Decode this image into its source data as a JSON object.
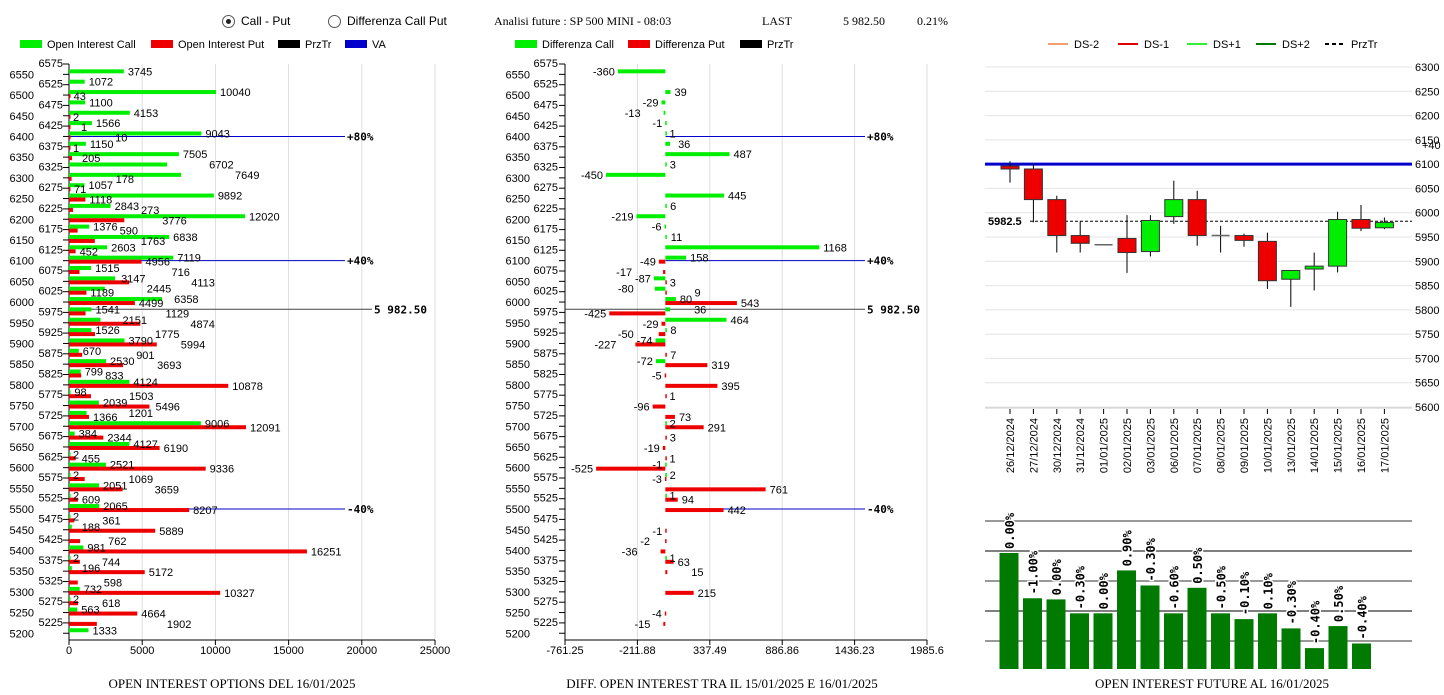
{
  "header": {
    "radio_options": [
      {
        "label": "Call - Put",
        "selected": true
      },
      {
        "label": "Differenza Call Put",
        "selected": false
      }
    ],
    "title": "Analisi future : SP 500 MINI - 08:03",
    "last_label": "LAST",
    "last_value": "5 982.50",
    "last_change": "0.21%"
  },
  "colors": {
    "call": "#00ee00",
    "put": "#ee0000",
    "prztr": "#000000",
    "va": "#0000cc",
    "candle_up": "#00ee00",
    "candle_down": "#ee0000",
    "oi_bar": "#007a00",
    "ds_minus2": "#f0a070",
    "ds_minus1": "#dd0000",
    "ds_plus1": "#33ee33",
    "ds_plus2": "#007a00"
  },
  "chart_data": [
    {
      "type": "bar",
      "orientation": "horizontal",
      "title": "OPEN INTEREST OPTIONS DEL 16/01/2025",
      "legend": [
        {
          "label": "Open Interest Call",
          "color": "#00ee00"
        },
        {
          "label": "Open Interest Put",
          "color": "#ee0000"
        },
        {
          "label": "PrzTr",
          "color": "#000000"
        },
        {
          "label": "VA",
          "color": "#0000cc"
        }
      ],
      "xlim": [
        0,
        25000
      ],
      "xticks": [
        "0",
        "5000",
        "10000",
        "15000",
        "20000",
        "25000"
      ],
      "yticks": [
        "6575",
        "6550",
        "6525",
        "6500",
        "6475",
        "6450",
        "6425",
        "6400",
        "6375",
        "6350",
        "6325",
        "6300",
        "6275",
        "6250",
        "6225",
        "6200",
        "6175",
        "6150",
        "6125",
        "6100",
        "6075",
        "6050",
        "6025",
        "6000",
        "5975",
        "5950",
        "5925",
        "5900",
        "5875",
        "5850",
        "5825",
        "5800",
        "5775",
        "5750",
        "5725",
        "5700",
        "5675",
        "5650",
        "5625",
        "5600",
        "5575",
        "5550",
        "5525",
        "5500",
        "5475",
        "5450",
        "5425",
        "5400",
        "5375",
        "5350",
        "5325",
        "5300",
        "5275",
        "5250",
        "5225",
        "5200"
      ],
      "strikes": [
        6550,
        6525,
        6500,
        6475,
        6450,
        6425,
        6400,
        6375,
        6350,
        6325,
        6300,
        6275,
        6250,
        6225,
        6200,
        6175,
        6150,
        6125,
        6100,
        6075,
        6050,
        6025,
        6000,
        5975,
        5950,
        5925,
        5900,
        5875,
        5850,
        5825,
        5800,
        5775,
        5750,
        5725,
        5700,
        5675,
        5650,
        5625,
        5600,
        5575,
        5550,
        5525,
        5500,
        5475,
        5450,
        5425,
        5400,
        5375,
        5350,
        5325,
        5300,
        5275,
        5250,
        5225,
        5200
      ],
      "series": [
        {
          "name": "Open Interest Call",
          "values": [
            3745,
            1072,
            10040,
            1100,
            4153,
            1566,
            9043,
            1150,
            7505,
            6702,
            7649,
            1057,
            9892,
            2843,
            12020,
            1376,
            6838,
            2603,
            7119,
            1515,
            3147,
            2445,
            6358,
            1541,
            2151,
            1526,
            3790,
            670,
            2530,
            799,
            4124,
            98,
            2039,
            1201,
            9006,
            384,
            4127,
            2,
            2521,
            2,
            2051,
            2,
            2065,
            2,
            188,
            0,
            981,
            2,
            196,
            0,
            732,
            2,
            563,
            0,
            1333
          ]
        },
        {
          "name": "Open Interest Put",
          "values": [
            0,
            0,
            43,
            0,
            2,
            1,
            10,
            1,
            205,
            0,
            178,
            71,
            1118,
            273,
            3776,
            590,
            1763,
            452,
            4956,
            716,
            4113,
            1189,
            4499,
            1129,
            4874,
            1775,
            5994,
            901,
            3693,
            833,
            10878,
            1503,
            5496,
            1366,
            12091,
            2344,
            6190,
            455,
            9336,
            1069,
            3659,
            609,
            8207,
            361,
            5889,
            762,
            16251,
            744,
            5172,
            598,
            10327,
            618,
            4664,
            1902,
            0
          ]
        }
      ],
      "reference_lines": [
        {
          "value": 6400,
          "label": "+80%",
          "kind": "va"
        },
        {
          "value": 6100,
          "label": "+40%",
          "kind": "va"
        },
        {
          "value": 5500,
          "label": "-40%",
          "kind": "va"
        },
        {
          "value": 5982.5,
          "label": "5 982.50",
          "kind": "prztr"
        }
      ]
    },
    {
      "type": "bar",
      "orientation": "horizontal",
      "title": "DIFF. OPEN INTEREST TRA IL 15/01/2025 E 16/01/2025",
      "legend": [
        {
          "label": "Differenza Call",
          "color": "#00ee00"
        },
        {
          "label": "Differenza Put",
          "color": "#ee0000"
        },
        {
          "label": "PrzTr",
          "color": "#000000"
        }
      ],
      "xlim": [
        -761.25,
        1985.6
      ],
      "xticks": [
        "-761.25",
        "-211.88",
        "337.49",
        "886.86",
        "1436.23",
        "1985.6"
      ],
      "series": [
        {
          "name": "Differenza Call",
          "values": [
            -360,
            0,
            39,
            -29,
            -13,
            -1,
            1,
            36,
            487,
            3,
            -450,
            0,
            445,
            6,
            -219,
            -6,
            11,
            1168,
            158,
            0,
            -87,
            -80,
            80,
            36,
            464,
            8,
            -74,
            0,
            -72,
            0,
            0,
            0,
            0,
            0,
            2,
            0,
            0,
            0,
            -1,
            2,
            0,
            1,
            0,
            0,
            0,
            0,
            0,
            1,
            0,
            0,
            0,
            0,
            0,
            0,
            0
          ]
        },
        {
          "name": "Differenza Put",
          "values": [
            0,
            0,
            0,
            0,
            0,
            0,
            0,
            0,
            0,
            0,
            0,
            0,
            0,
            0,
            0,
            0,
            0,
            0,
            -49,
            -17,
            3,
            9,
            543,
            -425,
            -29,
            -50,
            -227,
            7,
            319,
            -5,
            395,
            1,
            -96,
            73,
            291,
            3,
            -19,
            1,
            -525,
            -3,
            761,
            94,
            442,
            0,
            -1,
            -2,
            -36,
            63,
            15,
            0,
            215,
            0,
            -4,
            -15,
            0
          ]
        }
      ],
      "reference_lines": [
        {
          "value": 6400,
          "label": "+80%",
          "kind": "va"
        },
        {
          "value": 6100,
          "label": "+40%",
          "kind": "va"
        },
        {
          "value": 5500,
          "label": "-40%",
          "kind": "va"
        },
        {
          "value": 5982.5,
          "label": "5 982.50",
          "kind": "prztr"
        }
      ]
    },
    {
      "type": "candlestick",
      "legend": [
        {
          "label": "DS-2",
          "color": "#f0a070",
          "style": "solid"
        },
        {
          "label": "DS-1",
          "color": "#dd0000",
          "style": "solid"
        },
        {
          "label": "DS+1",
          "color": "#33ee33",
          "style": "solid"
        },
        {
          "label": "DS+2",
          "color": "#007a00",
          "style": "solid"
        },
        {
          "label": "PrzTr",
          "color": "#000000",
          "style": "dashed"
        }
      ],
      "ylim": [
        5600,
        6300
      ],
      "yticks": [
        "6300",
        "6250",
        "6200",
        "6150",
        "6100",
        "6050",
        "6000",
        "5950",
        "5900",
        "5850",
        "5800",
        "5750",
        "5700",
        "5650",
        "5600"
      ],
      "dates": [
        "26/12/2024",
        "27/12/2024",
        "30/12/2024",
        "31/12/2024",
        "01/01/2025",
        "02/01/2025",
        "03/01/2025",
        "06/01/2025",
        "07/01/2025",
        "08/01/2025",
        "09/01/2025",
        "10/01/2025",
        "13/01/2025",
        "14/01/2025",
        "15/01/2025",
        "16/01/2025",
        "17/01/2025"
      ],
      "ohlc": [
        [
          6096,
          6106,
          6062,
          6090
        ],
        [
          6090,
          6100,
          5980,
          6027
        ],
        [
          6027,
          6035,
          5918,
          5953
        ],
        [
          5953,
          5982,
          5918,
          5937
        ],
        [
          5934,
          5934,
          5934,
          5934
        ],
        [
          5947,
          5995,
          5876,
          5918
        ],
        [
          5920,
          5995,
          5910,
          5984
        ],
        [
          5992,
          6066,
          5977,
          6027
        ],
        [
          6027,
          6045,
          5932,
          5953
        ],
        [
          5953,
          5973,
          5918,
          5953
        ],
        [
          5953,
          5957,
          5930,
          5943
        ],
        [
          5941,
          5959,
          5843,
          5860
        ],
        [
          5863,
          5881,
          5806,
          5881
        ],
        [
          5884,
          5918,
          5840,
          5890
        ],
        [
          5890,
          6002,
          5877,
          5986
        ],
        [
          5986,
          6016,
          5962,
          5968
        ],
        [
          5969,
          5990,
          5966,
          5980
        ]
      ],
      "hline": {
        "value": 6100,
        "label": "+40"
      },
      "prztr": {
        "value": 5982.5,
        "label": "5982.5"
      }
    },
    {
      "type": "bar",
      "title": "OPEN INTEREST FUTURE AL 16/01/2025",
      "labels": [
        "0.00%",
        "-1.00%",
        "0.00%",
        "-0.30%",
        "0.00%",
        "0.90%",
        "-0.30%",
        "-0.60%",
        "0.50%",
        "-0.50%",
        "-0.10%",
        "0.10%",
        "-0.30%",
        "-0.40%",
        "0.50%",
        "-0.40%"
      ],
      "relative_values": [
        100,
        61,
        60,
        48,
        48,
        85,
        72,
        48,
        70,
        48,
        43,
        48,
        35,
        18,
        37,
        22
      ]
    }
  ]
}
